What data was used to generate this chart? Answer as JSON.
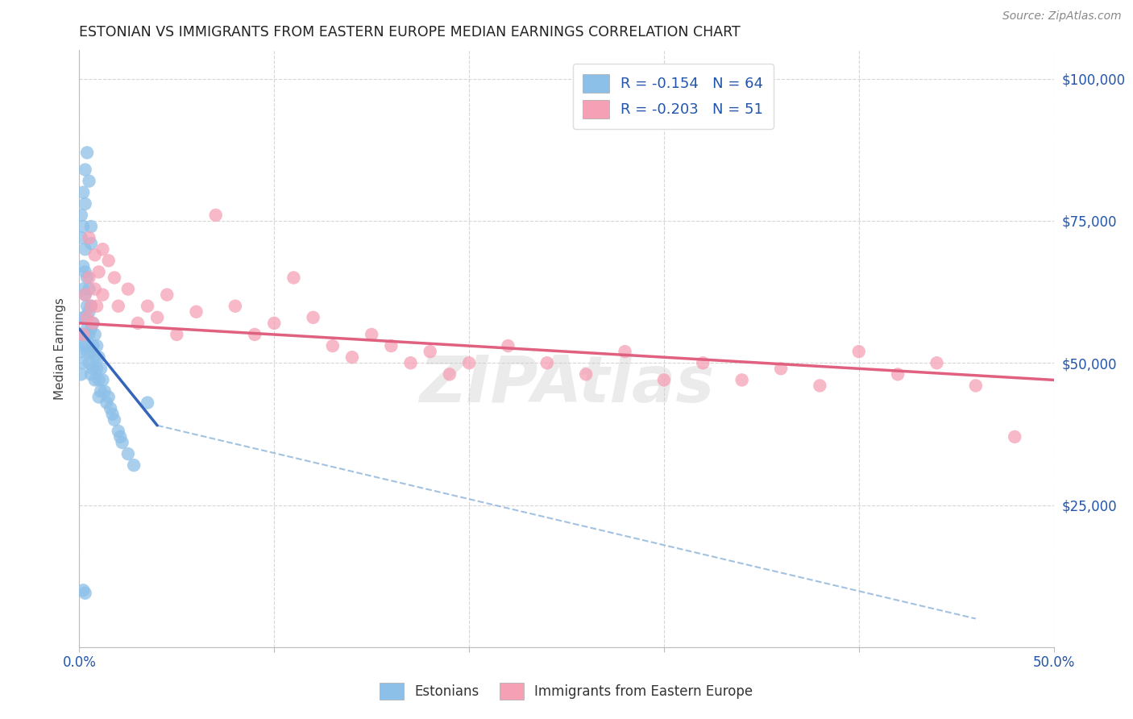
{
  "title": "ESTONIAN VS IMMIGRANTS FROM EASTERN EUROPE MEDIAN EARNINGS CORRELATION CHART",
  "source": "Source: ZipAtlas.com",
  "ylabel": "Median Earnings",
  "xlim": [
    0,
    0.5
  ],
  "ylim": [
    0,
    105000
  ],
  "xtick_positions": [
    0.0,
    0.1,
    0.2,
    0.3,
    0.4,
    0.5
  ],
  "xtick_labels": [
    "0.0%",
    "",
    "",
    "",
    "",
    "50.0%"
  ],
  "yticks": [
    0,
    25000,
    50000,
    75000,
    100000
  ],
  "ytick_labels_right": [
    "",
    "$25,000",
    "$50,000",
    "$75,000",
    "$100,000"
  ],
  "legend_label1": "Estonians",
  "legend_label2": "Immigrants from Eastern Europe",
  "color_blue": "#8dc0e8",
  "color_pink": "#f5a0b5",
  "color_blue_line": "#3366bb",
  "color_pink_line": "#e06080",
  "color_dashed": "#99bbdd",
  "watermark": "ZIPAtlas",
  "blue_R": -0.154,
  "blue_N": 64,
  "pink_R": -0.203,
  "pink_N": 51,
  "blue_x": [
    0.001,
    0.001,
    0.001,
    0.002,
    0.002,
    0.002,
    0.002,
    0.002,
    0.003,
    0.003,
    0.003,
    0.003,
    0.003,
    0.004,
    0.004,
    0.004,
    0.004,
    0.005,
    0.005,
    0.005,
    0.005,
    0.006,
    0.006,
    0.006,
    0.006,
    0.007,
    0.007,
    0.007,
    0.008,
    0.008,
    0.008,
    0.009,
    0.009,
    0.01,
    0.01,
    0.01,
    0.011,
    0.011,
    0.012,
    0.013,
    0.014,
    0.015,
    0.016,
    0.017,
    0.018,
    0.02,
    0.021,
    0.022,
    0.025,
    0.028,
    0.001,
    0.001,
    0.002,
    0.002,
    0.003,
    0.003,
    0.004,
    0.005,
    0.006,
    0.006,
    0.002,
    0.003,
    0.004,
    0.035
  ],
  "blue_y": [
    55000,
    52000,
    48000,
    67000,
    63000,
    58000,
    54000,
    50000,
    70000,
    66000,
    62000,
    58000,
    53000,
    65000,
    60000,
    56000,
    52000,
    63000,
    59000,
    55000,
    50000,
    60000,
    56000,
    52000,
    48000,
    57000,
    53000,
    49000,
    55000,
    51000,
    47000,
    53000,
    49000,
    51000,
    47000,
    44000,
    49000,
    45000,
    47000,
    45000,
    43000,
    44000,
    42000,
    41000,
    40000,
    38000,
    37000,
    36000,
    34000,
    32000,
    76000,
    72000,
    80000,
    74000,
    84000,
    78000,
    87000,
    82000,
    74000,
    71000,
    10000,
    9500,
    55000,
    43000
  ],
  "pink_x": [
    0.002,
    0.003,
    0.004,
    0.005,
    0.006,
    0.007,
    0.008,
    0.009,
    0.01,
    0.012,
    0.015,
    0.018,
    0.02,
    0.025,
    0.03,
    0.035,
    0.04,
    0.045,
    0.05,
    0.06,
    0.07,
    0.08,
    0.09,
    0.1,
    0.11,
    0.12,
    0.13,
    0.14,
    0.15,
    0.16,
    0.17,
    0.18,
    0.19,
    0.2,
    0.22,
    0.24,
    0.26,
    0.28,
    0.3,
    0.32,
    0.34,
    0.36,
    0.38,
    0.4,
    0.42,
    0.44,
    0.46,
    0.48,
    0.005,
    0.008,
    0.012
  ],
  "pink_y": [
    55000,
    62000,
    58000,
    65000,
    60000,
    57000,
    63000,
    60000,
    66000,
    62000,
    68000,
    65000,
    60000,
    63000,
    57000,
    60000,
    58000,
    62000,
    55000,
    59000,
    76000,
    60000,
    55000,
    57000,
    65000,
    58000,
    53000,
    51000,
    55000,
    53000,
    50000,
    52000,
    48000,
    50000,
    53000,
    50000,
    48000,
    52000,
    47000,
    50000,
    47000,
    49000,
    46000,
    52000,
    48000,
    50000,
    46000,
    37000,
    72000,
    69000,
    70000
  ],
  "blue_line_x": [
    0.0,
    0.04
  ],
  "blue_line_y": [
    56000,
    39000
  ],
  "pink_line_x": [
    0.0,
    0.5
  ],
  "pink_line_y": [
    57000,
    47000
  ],
  "dash_line_x": [
    0.04,
    0.46
  ],
  "dash_line_y": [
    39000,
    5000
  ]
}
